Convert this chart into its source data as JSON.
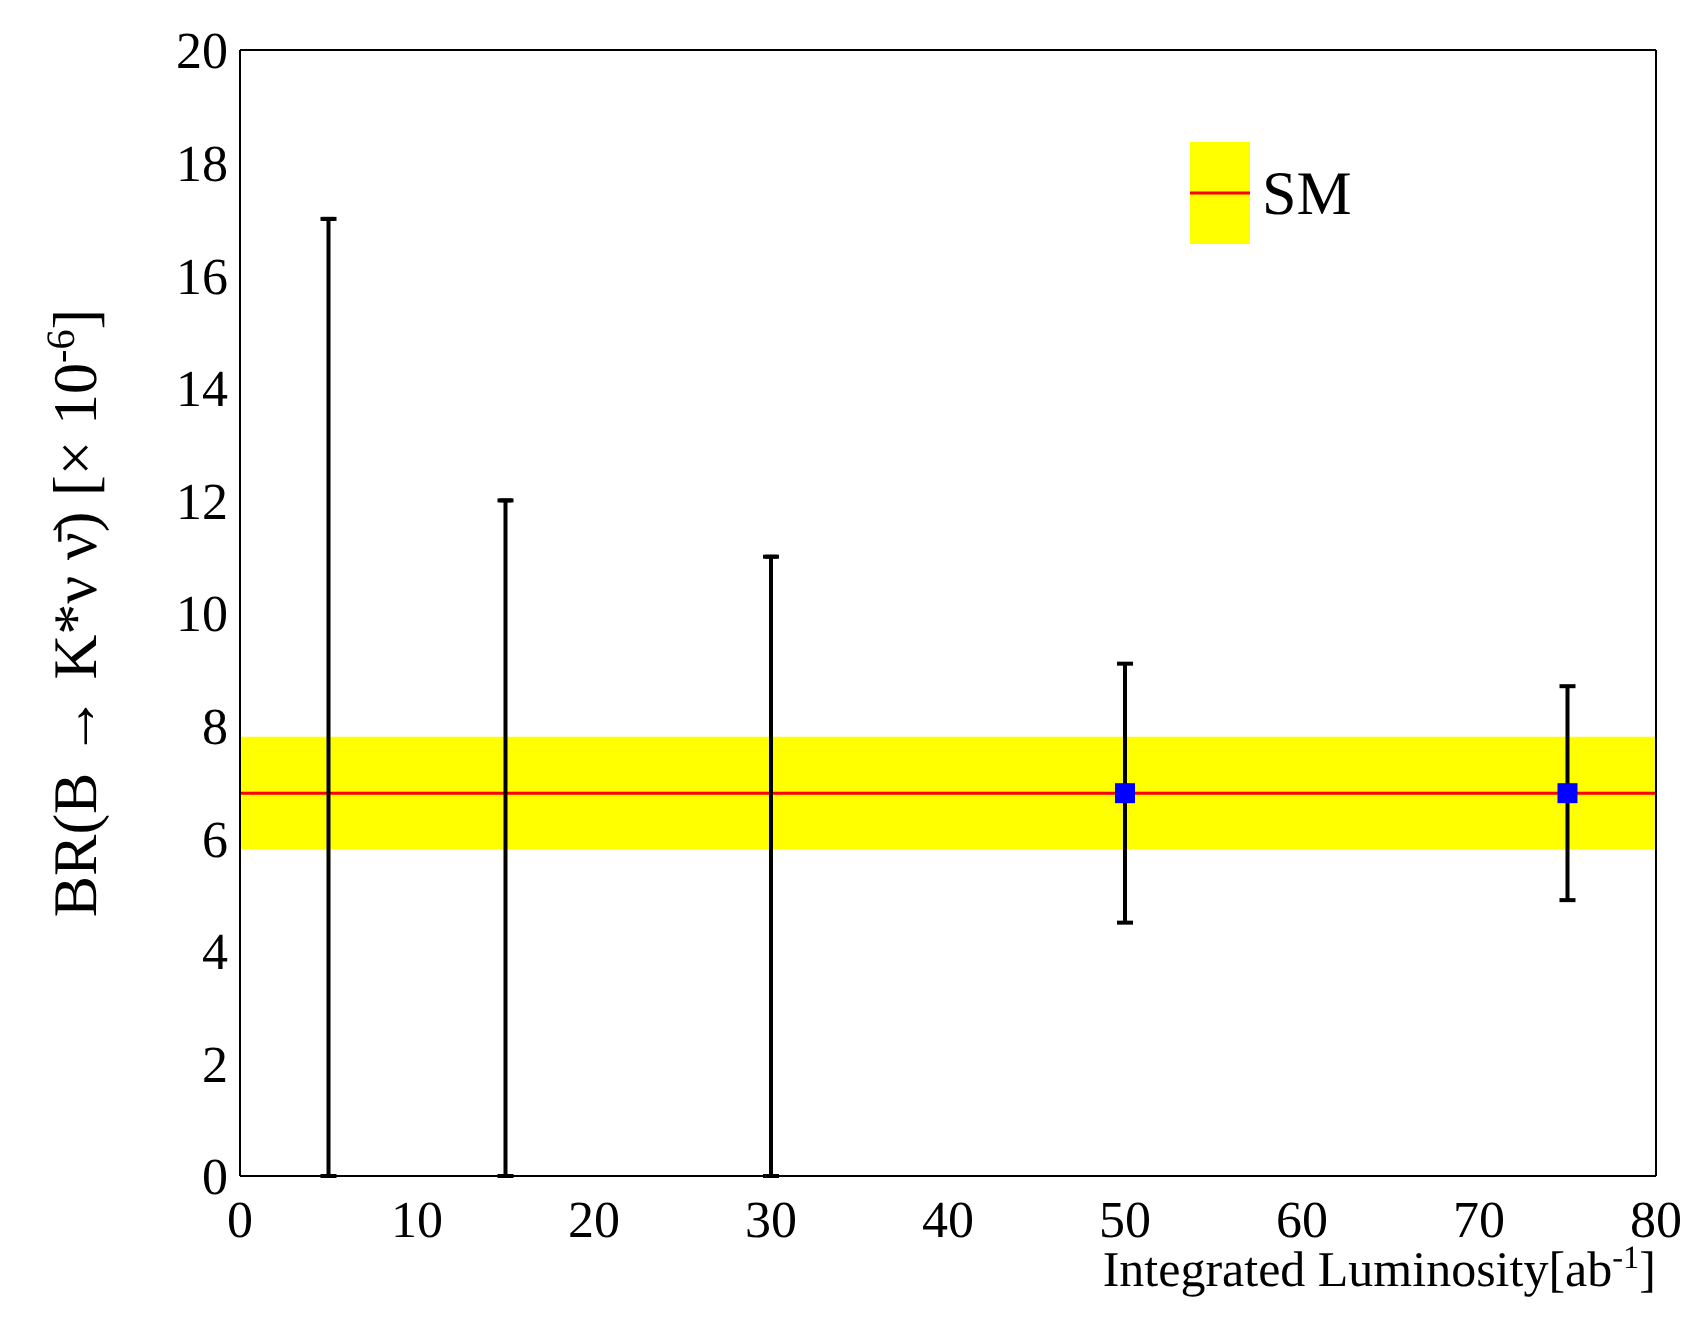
{
  "chart_data": {
    "type": "scatter",
    "xlabel": "Integrated Luminosity[ab$^{-1}$]",
    "ylabel": "BR(B → K*ν ν̄) [× 10$^{-6}$]",
    "xlim": [
      0,
      80
    ],
    "xticks": [
      0,
      10,
      20,
      30,
      40,
      50,
      60,
      70,
      80
    ],
    "ylim": [
      0,
      20
    ],
    "yticks": [
      0,
      2,
      4,
      6,
      8,
      10,
      12,
      14,
      16,
      18,
      20
    ],
    "series": [
      {
        "color": "#000000",
        "x": [
          5,
          15,
          30
        ],
        "values": [
          17,
          12,
          11
        ],
        "errors": [
          [
            0,
            17
          ],
          [
            0,
            12
          ],
          [
            0,
            11
          ]
        ]
      },
      {
        "color": "#0000ff",
        "marker": "square",
        "x": [
          50,
          75
        ],
        "values": [
          6.8,
          6.8
        ],
        "errors": [
          [
            4.5,
            9.1
          ],
          [
            4.9,
            8.7
          ]
        ]
      }
    ],
    "bands": [
      {
        "axis": "y",
        "from": 5.8,
        "to": 7.8,
        "label": "SM",
        "color": "#ffff00"
      }
    ],
    "ref_lines": [
      {
        "axis": "y",
        "value": 6.8,
        "color": "#ff0000"
      }
    ],
    "legend": "top right",
    "grid": false
  }
}
